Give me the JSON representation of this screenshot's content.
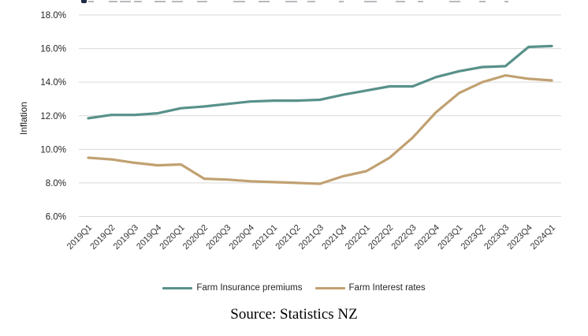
{
  "chart_data": {
    "type": "line",
    "categories": [
      "2019Q1",
      "2019Q2",
      "2019Q3",
      "2019Q4",
      "2020Q1",
      "2020Q2",
      "2020Q3",
      "2020Q4",
      "2021Q1",
      "2021Q2",
      "2021Q3",
      "2021Q4",
      "2022Q1",
      "2022Q2",
      "2022Q3",
      "2022Q4",
      "2023Q1",
      "2023Q2",
      "2023Q3",
      "2023Q4",
      "2024Q1"
    ],
    "series": [
      {
        "name": "Farm Insurance premiums",
        "color": "#58918A",
        "values": [
          11.85,
          12.05,
          12.05,
          12.15,
          12.45,
          12.55,
          12.7,
          12.85,
          12.9,
          12.9,
          12.95,
          13.25,
          13.5,
          13.75,
          13.75,
          14.3,
          14.65,
          14.9,
          14.95,
          16.1,
          16.15
        ]
      },
      {
        "name": "Farm Interest rates",
        "color": "#C1A171",
        "values": [
          9.5,
          9.4,
          9.2,
          9.05,
          9.1,
          8.25,
          8.2,
          8.1,
          8.05,
          8.0,
          7.95,
          8.4,
          8.7,
          9.5,
          10.7,
          12.2,
          13.35,
          14.0,
          14.4,
          14.2,
          14.1
        ]
      }
    ],
    "xlabel": "",
    "ylabel": "Inflation",
    "y_ticks": [
      "6.0%",
      "8.0%",
      "10.0%",
      "12.0%",
      "14.0%",
      "16.0%",
      "18.0%"
    ],
    "ylim": [
      6,
      18
    ],
    "grid": true,
    "gridline_color": "#D9D9D9",
    "legend_position": "bottom"
  },
  "source": "Source: Statistics NZ"
}
